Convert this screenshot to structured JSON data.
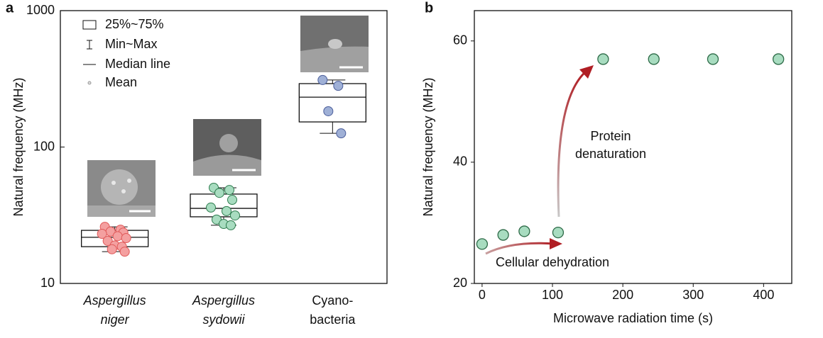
{
  "chart_data": [
    {
      "type": "box",
      "panel_label": "a",
      "y_label": "Natural frequency (MHz)",
      "categories": [
        [
          "Aspergillus",
          "niger"
        ],
        [
          "Aspergillus",
          "sydowii"
        ],
        [
          "Cyano-",
          "bacteria"
        ]
      ],
      "italic": [
        true,
        true,
        false
      ],
      "log_y": true,
      "ylim": [
        10,
        1000
      ],
      "yticks": [
        10,
        100,
        1000
      ],
      "legend": [
        "25%~75%",
        "Min~Max",
        "Median line",
        "Mean"
      ],
      "legend_corner": "upper-left",
      "series": [
        {
          "color": "#f4a0a0",
          "edge": "#e05a5a",
          "q1": 18.6,
          "median": 21.8,
          "q3": 24.5,
          "min": 17.1,
          "max": 26.0,
          "points": [
            26.0,
            24.8,
            24.0,
            23.6,
            23.1,
            22.2,
            21.5,
            20.5,
            19.0,
            18.6,
            17.8,
            17.1
          ]
        },
        {
          "color": "#a8dcc0",
          "edge": "#2e7d4f",
          "q1": 30.8,
          "median": 35.5,
          "q3": 45.2,
          "min": 26.7,
          "max": 50.3,
          "points": [
            50.3,
            48.4,
            46.1,
            41.0,
            36.0,
            33.9,
            31.5,
            29.4,
            27.3,
            26.7
          ]
        },
        {
          "color": "#9fb0d6",
          "edge": "#4a5d9a",
          "q1": 152.8,
          "median": 232,
          "q3": 291.7,
          "min": 126,
          "max": 310,
          "points": [
            310,
            281,
            183,
            126
          ]
        }
      ]
    },
    {
      "type": "scatter",
      "panel_label": "b",
      "x_label": "Microwave radiation time (s)",
      "y_label": "Natural frequency (MHz)",
      "xlim": [
        -11,
        440
      ],
      "ylim": [
        20,
        65
      ],
      "xticks": [
        0,
        100,
        200,
        300,
        400
      ],
      "yticks": [
        20,
        40,
        60
      ],
      "color": "#a8dcc0",
      "edge": "#2e6b48",
      "x": [
        0,
        30,
        60,
        108,
        172,
        244,
        328,
        421
      ],
      "values": [
        26.5,
        28.0,
        28.6,
        28.4,
        57.0,
        57.0,
        57.0,
        57.0
      ],
      "annotations": [
        "Protein",
        "denaturation",
        "Cellular dehydration"
      ]
    }
  ]
}
